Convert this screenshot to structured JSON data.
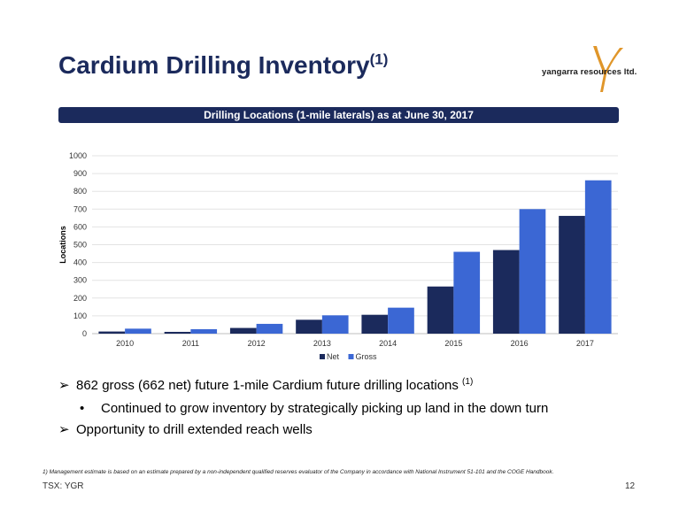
{
  "slide": {
    "title": "Cardium Drilling Inventory",
    "title_superscript": "(1)",
    "logo_text": "yangarra resources ltd.",
    "banner": "Drilling Locations (1-mile laterals) as at June 30, 2017",
    "bullets": [
      {
        "text": "862 gross (662 net) future 1-mile Cardium future drilling locations",
        "superscript": "(1)"
      },
      {
        "text": "Continued to grow inventory by strategically picking up land in the down turn"
      },
      {
        "text": "Opportunity to drill extended reach wells"
      }
    ],
    "footnote": "1) Management estimate is based on an estimate prepared by a non-independent qualified reserves evaluator of the Company in accordance with National Instrument 51-101 and the COGE Handbook.",
    "footer_left": "TSX: YGR",
    "page_number": "12",
    "colors": {
      "title": "#1b2a5c",
      "banner_bg": "#1b2a5c",
      "net": "#1b2a5c",
      "gross": "#3b67d4"
    }
  },
  "chart_data": {
    "type": "bar",
    "categories": [
      "2010",
      "2011",
      "2012",
      "2013",
      "2014",
      "2015",
      "2016",
      "2017"
    ],
    "series": [
      {
        "name": "Net",
        "values": [
          12,
          10,
          32,
          78,
          106,
          265,
          470,
          662
        ]
      },
      {
        "name": "Gross",
        "values": [
          28,
          25,
          55,
          103,
          146,
          460,
          700,
          862
        ]
      }
    ],
    "ylabel": "Locations",
    "ylim": [
      0,
      1000
    ],
    "yticks": [
      "0",
      "100",
      "200",
      "300",
      "400",
      "500",
      "600",
      "700",
      "800",
      "900",
      "1000"
    ],
    "grid": true,
    "legend": "bottom"
  }
}
